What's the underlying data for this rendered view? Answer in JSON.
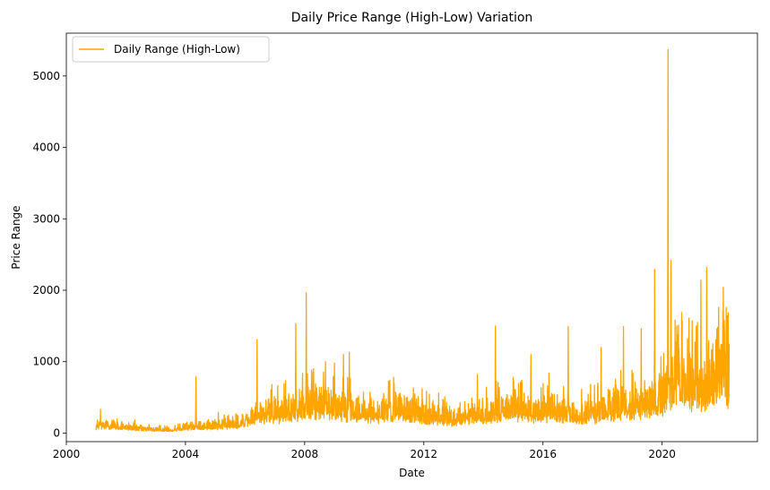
{
  "chart_data": {
    "type": "line",
    "title": "Daily Price Range (High-Low) Variation",
    "xlabel": "Date",
    "ylabel": "Price Range",
    "xlim": [
      2000.0,
      2023.2
    ],
    "ylim": [
      -120,
      5600
    ],
    "x_ticks": [
      2000,
      2004,
      2008,
      2012,
      2016,
      2020
    ],
    "x_tick_labels": [
      "2000",
      "2004",
      "2008",
      "2012",
      "2016",
      "2020"
    ],
    "y_ticks": [
      0,
      1000,
      2000,
      3000,
      4000,
      5000
    ],
    "y_tick_labels": [
      "0",
      "1000",
      "2000",
      "3000",
      "4000",
      "5000"
    ],
    "grid": false,
    "legend": {
      "position": "top-left",
      "entries": [
        "Daily Range (High-Low)"
      ]
    },
    "colors": {
      "series": "#FFA500"
    },
    "series": [
      {
        "name": "Daily Range (High-Low)",
        "x_start": 2001.0,
        "x_end": 2022.25,
        "baseline": [
          [
            2001.0,
            90
          ],
          [
            2001.5,
            110
          ],
          [
            2002.0,
            70
          ],
          [
            2002.5,
            55
          ],
          [
            2003.0,
            45
          ],
          [
            2003.5,
            40
          ],
          [
            2004.0,
            80
          ],
          [
            2004.5,
            95
          ],
          [
            2005.0,
            90
          ],
          [
            2005.5,
            120
          ],
          [
            2006.0,
            150
          ],
          [
            2006.5,
            260
          ],
          [
            2007.0,
            280
          ],
          [
            2007.5,
            300
          ],
          [
            2008.0,
            380
          ],
          [
            2008.5,
            400
          ],
          [
            2009.0,
            360
          ],
          [
            2009.5,
            320
          ],
          [
            2010.0,
            280
          ],
          [
            2010.5,
            260
          ],
          [
            2011.0,
            320
          ],
          [
            2011.5,
            300
          ],
          [
            2012.0,
            250
          ],
          [
            2012.5,
            220
          ],
          [
            2013.0,
            180
          ],
          [
            2013.5,
            230
          ],
          [
            2014.0,
            260
          ],
          [
            2014.5,
            300
          ],
          [
            2015.0,
            320
          ],
          [
            2015.5,
            300
          ],
          [
            2016.0,
            290
          ],
          [
            2016.5,
            300
          ],
          [
            2017.0,
            260
          ],
          [
            2017.5,
            250
          ],
          [
            2018.0,
            300
          ],
          [
            2018.5,
            380
          ],
          [
            2019.0,
            380
          ],
          [
            2019.5,
            400
          ],
          [
            2020.0,
            520
          ],
          [
            2020.5,
            700
          ],
          [
            2021.0,
            650
          ],
          [
            2021.5,
            620
          ],
          [
            2022.0,
            750
          ],
          [
            2022.25,
            700
          ]
        ],
        "spikes": [
          [
            2001.15,
            330
          ],
          [
            2001.7,
            200
          ],
          [
            2002.3,
            180
          ],
          [
            2004.35,
            790
          ],
          [
            2005.1,
            290
          ],
          [
            2006.4,
            1310
          ],
          [
            2006.9,
            680
          ],
          [
            2007.7,
            1530
          ],
          [
            2008.05,
            1960
          ],
          [
            2008.3,
            900
          ],
          [
            2008.7,
            1000
          ],
          [
            2009.0,
            980
          ],
          [
            2009.3,
            1100
          ],
          [
            2009.5,
            1130
          ],
          [
            2011.0,
            700
          ],
          [
            2012.5,
            560
          ],
          [
            2013.8,
            820
          ],
          [
            2014.4,
            1500
          ],
          [
            2015.0,
            780
          ],
          [
            2015.6,
            1100
          ],
          [
            2016.2,
            840
          ],
          [
            2016.85,
            1490
          ],
          [
            2017.6,
            680
          ],
          [
            2017.95,
            1200
          ],
          [
            2018.7,
            1490
          ],
          [
            2019.3,
            1460
          ],
          [
            2019.75,
            2290
          ],
          [
            2020.05,
            1120
          ],
          [
            2020.2,
            5370
          ],
          [
            2020.3,
            2420
          ],
          [
            2020.55,
            1510
          ],
          [
            2020.9,
            1610
          ],
          [
            2021.15,
            1500
          ],
          [
            2021.3,
            2140
          ],
          [
            2021.5,
            2320
          ],
          [
            2021.7,
            1250
          ],
          [
            2021.9,
            1760
          ],
          [
            2022.05,
            2040
          ],
          [
            2022.15,
            1760
          ]
        ]
      }
    ]
  }
}
